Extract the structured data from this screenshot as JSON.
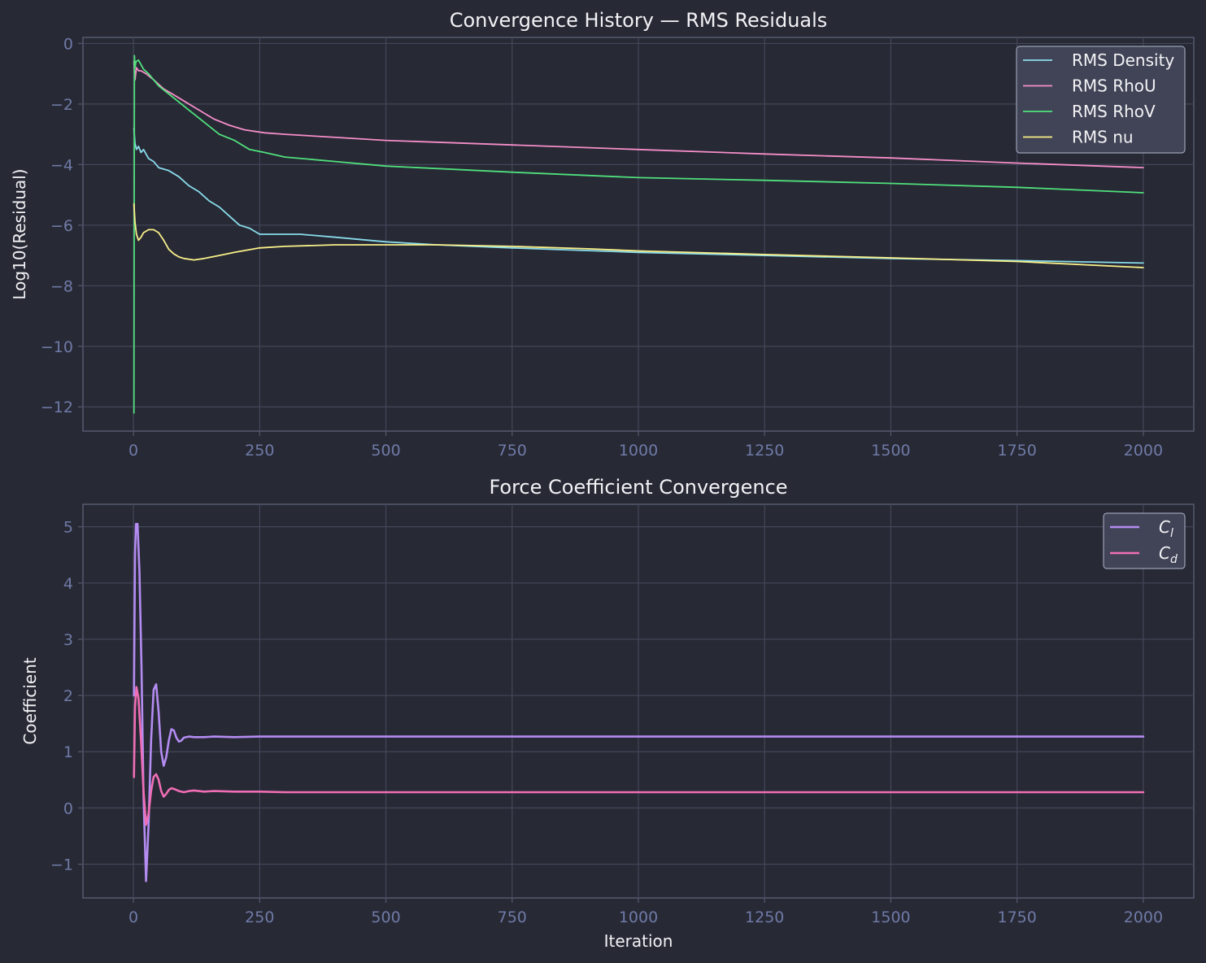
{
  "colors": {
    "background": "#272935",
    "grid": "#444759",
    "tick_text": "#6f7aa6",
    "text": "#f2f2f5"
  },
  "chart_data": [
    {
      "type": "line",
      "title": "Convergence History — RMS Residuals",
      "xlabel": "",
      "ylabel": "Log10(Residual)",
      "xlim": [
        -100,
        2100
      ],
      "ylim": [
        -12.8,
        0.2
      ],
      "xticks": [
        0,
        250,
        500,
        750,
        1000,
        1250,
        1500,
        1750,
        2000
      ],
      "yticks": [
        0,
        -2,
        -4,
        -6,
        -8,
        -10,
        -12
      ],
      "xtick_labels": [
        "0",
        "250",
        "500",
        "750",
        "1000",
        "1250",
        "1500",
        "1750",
        "2000"
      ],
      "ytick_labels": [
        "0",
        "−2",
        "−4",
        "−6",
        "−8",
        "−10",
        "−12"
      ],
      "grid": true,
      "legend": "top-right",
      "series": [
        {
          "name": "RMS Density",
          "color": "#89dceb",
          "x": [
            1,
            3,
            6,
            10,
            15,
            20,
            30,
            40,
            50,
            70,
            90,
            110,
            130,
            150,
            170,
            190,
            210,
            230,
            250,
            280,
            330,
            400,
            500,
            600,
            750,
            1000,
            1250,
            1500,
            1750,
            2000
          ],
          "y": [
            -2.8,
            -3.3,
            -3.5,
            -3.4,
            -3.6,
            -3.5,
            -3.8,
            -3.9,
            -4.1,
            -4.2,
            -4.4,
            -4.7,
            -4.9,
            -5.2,
            -5.4,
            -5.7,
            -6.0,
            -6.1,
            -6.3,
            -6.3,
            -6.3,
            -6.4,
            -6.55,
            -6.65,
            -6.75,
            -6.9,
            -7.0,
            -7.1,
            -7.17,
            -7.25
          ]
        },
        {
          "name": "RMS RhoU",
          "color": "#f58ec8",
          "x": [
            1,
            3,
            6,
            10,
            15,
            25,
            40,
            60,
            80,
            100,
            130,
            160,
            190,
            220,
            260,
            300,
            400,
            500,
            750,
            1000,
            1250,
            1500,
            1750,
            2000
          ],
          "y": [
            -0.6,
            -1.2,
            -0.8,
            -0.9,
            -0.9,
            -1.0,
            -1.2,
            -1.5,
            -1.7,
            -1.9,
            -2.2,
            -2.5,
            -2.7,
            -2.85,
            -2.95,
            -3.0,
            -3.1,
            -3.2,
            -3.35,
            -3.5,
            -3.65,
            -3.78,
            -3.95,
            -4.1
          ]
        },
        {
          "name": "RMS RhoV",
          "color": "#50e07c",
          "x": [
            1,
            2,
            3,
            5,
            10,
            20,
            30,
            50,
            80,
            110,
            140,
            170,
            200,
            230,
            260,
            300,
            400,
            500,
            750,
            1000,
            1250,
            1500,
            1750,
            2000
          ],
          "y": [
            -12.2,
            -0.4,
            -0.8,
            -0.6,
            -0.55,
            -0.85,
            -1.0,
            -1.4,
            -1.8,
            -2.2,
            -2.6,
            -3.0,
            -3.2,
            -3.5,
            -3.6,
            -3.75,
            -3.9,
            -4.05,
            -4.25,
            -4.43,
            -4.52,
            -4.62,
            -4.75,
            -4.93
          ]
        },
        {
          "name": "RMS nu",
          "color": "#f9f089",
          "x": [
            1,
            3,
            6,
            10,
            15,
            20,
            30,
            40,
            50,
            60,
            70,
            80,
            90,
            100,
            120,
            140,
            170,
            200,
            250,
            300,
            400,
            500,
            600,
            750,
            900,
            1000,
            1250,
            1500,
            1750,
            2000
          ],
          "y": [
            -5.3,
            -5.9,
            -6.3,
            -6.5,
            -6.4,
            -6.25,
            -6.15,
            -6.15,
            -6.25,
            -6.5,
            -6.8,
            -6.95,
            -7.05,
            -7.1,
            -7.15,
            -7.1,
            -7.0,
            -6.9,
            -6.75,
            -6.7,
            -6.65,
            -6.65,
            -6.65,
            -6.7,
            -6.78,
            -6.85,
            -6.97,
            -7.08,
            -7.2,
            -7.4
          ]
        }
      ]
    },
    {
      "type": "line",
      "title": "Force Coefficient Convergence",
      "xlabel": "Iteration",
      "ylabel": "Coefficient",
      "xlim": [
        -100,
        2100
      ],
      "ylim": [
        -1.6,
        5.4
      ],
      "xticks": [
        0,
        250,
        500,
        750,
        1000,
        1250,
        1500,
        1750,
        2000
      ],
      "yticks": [
        5,
        4,
        3,
        2,
        1,
        0,
        -1
      ],
      "xtick_labels": [
        "0",
        "250",
        "500",
        "750",
        "1000",
        "1250",
        "1500",
        "1750",
        "2000"
      ],
      "ytick_labels": [
        "5",
        "4",
        "3",
        "2",
        "1",
        "0",
        "−1"
      ],
      "grid": true,
      "legend": "top-right",
      "series": [
        {
          "name": "C_l",
          "legend_main": "C",
          "legend_sub": "l",
          "color": "#b48cf2",
          "x": [
            1,
            3,
            5,
            8,
            12,
            16,
            20,
            25,
            30,
            35,
            40,
            45,
            50,
            55,
            60,
            65,
            70,
            75,
            80,
            85,
            90,
            95,
            100,
            110,
            120,
            140,
            160,
            200,
            250,
            300,
            500,
            1000,
            1500,
            2000
          ],
          "y": [
            2.0,
            4.5,
            5.05,
            5.05,
            4.2,
            2.5,
            0.2,
            -1.3,
            -0.3,
            1.2,
            2.1,
            2.2,
            1.7,
            1.0,
            0.75,
            0.9,
            1.2,
            1.4,
            1.38,
            1.25,
            1.18,
            1.2,
            1.25,
            1.27,
            1.26,
            1.26,
            1.27,
            1.26,
            1.27,
            1.27,
            1.27,
            1.27,
            1.27,
            1.27
          ]
        },
        {
          "name": "C_d",
          "legend_main": "C",
          "legend_sub": "d",
          "color": "#f06eb5",
          "x": [
            1,
            3,
            6,
            10,
            15,
            20,
            25,
            30,
            35,
            40,
            45,
            50,
            55,
            60,
            65,
            70,
            75,
            80,
            90,
            100,
            110,
            120,
            140,
            160,
            200,
            250,
            300,
            500,
            1000,
            1500,
            2000
          ],
          "y": [
            0.55,
            1.8,
            2.15,
            1.95,
            1.2,
            0.3,
            -0.3,
            -0.1,
            0.3,
            0.55,
            0.6,
            0.5,
            0.3,
            0.2,
            0.25,
            0.32,
            0.35,
            0.34,
            0.3,
            0.28,
            0.3,
            0.31,
            0.29,
            0.3,
            0.29,
            0.29,
            0.28,
            0.28,
            0.28,
            0.28,
            0.28
          ]
        }
      ]
    }
  ]
}
